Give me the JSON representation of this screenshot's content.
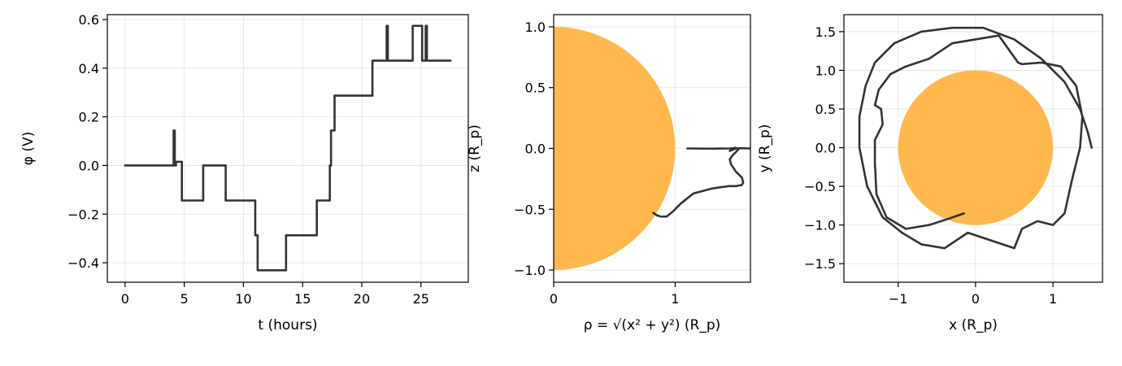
{
  "figure": {
    "background": "#ffffff",
    "trace_color": "#333333",
    "planet_color": "#ffb84d"
  },
  "chart_data": [
    {
      "type": "line",
      "xlabel": "t (hours)",
      "ylabel": "φ (V)",
      "xlim": [
        -1.5,
        29.0
      ],
      "ylim": [
        -0.48,
        0.62
      ],
      "xticks": [
        0,
        5,
        10,
        15,
        20,
        25
      ],
      "yticks": [
        -0.4,
        -0.2,
        0.0,
        0.2,
        0.4,
        0.6
      ],
      "ytick_labels": [
        "−0.4",
        "−0.2",
        "0.0",
        "0.2",
        "0.4",
        "0.6"
      ],
      "grid": true,
      "series": [
        {
          "x": [
            0,
            4.1,
            4.1,
            4.2,
            4.2,
            4.3,
            4.3,
            4.8,
            4.8,
            6.6,
            6.6,
            8.5,
            8.5,
            11.0,
            11.0,
            11.1,
            11.1,
            11.2,
            11.2,
            13.6,
            13.6,
            16.2,
            16.2,
            17.3,
            17.3,
            17.4,
            17.4,
            17.6,
            17.6,
            17.7,
            17.7,
            20.9,
            20.9,
            22.1,
            22.1,
            22.2,
            22.2,
            22.3,
            22.3,
            24.3,
            24.3,
            25.0,
            25.0,
            25.1,
            25.1,
            25.4,
            25.4,
            25.5,
            25.5,
            27.5
          ],
          "y": [
            0,
            0,
            0.144,
            0.144,
            0,
            0,
            0.015,
            0.015,
            -0.144,
            -0.144,
            0,
            0,
            -0.144,
            -0.144,
            -0.287,
            -0.287,
            -0.287,
            -0.287,
            -0.431,
            -0.431,
            -0.287,
            -0.287,
            -0.144,
            -0.144,
            0,
            0,
            0.144,
            0.144,
            0.144,
            0.144,
            0.287,
            0.287,
            0.431,
            0.431,
            0.574,
            0.574,
            0.431,
            0.431,
            0.431,
            0.431,
            0.574,
            0.574,
            0.574,
            0.574,
            0.431,
            0.431,
            0.574,
            0.574,
            0.431,
            0.431
          ]
        }
      ]
    },
    {
      "type": "line",
      "xlabel": "ρ = √(x² + y²) (R_p)",
      "ylabel": "z (R_p)",
      "xlim": [
        0.0,
        1.62
      ],
      "ylim": [
        -1.1,
        1.1
      ],
      "xticks": [
        0,
        1
      ],
      "yticks": [
        -1.0,
        -0.5,
        0.0,
        0.5,
        1.0
      ],
      "ytick_labels": [
        "−1.0",
        "−0.5",
        "0.0",
        "0.5",
        "1.0"
      ],
      "grid": true,
      "planet": {
        "shape": "half-disk",
        "radius": 1.0
      },
      "series": [
        {
          "x": [
            1.1,
            1.3,
            1.45,
            1.5,
            1.52,
            1.5,
            1.47,
            1.45,
            1.46,
            1.5,
            1.55,
            1.56,
            1.55,
            1.5,
            1.44,
            1.3,
            1.15,
            1.05,
            0.98,
            0.93,
            0.88,
            0.85,
            0.82
          ],
          "y": [
            0.0,
            -0.002,
            0.0,
            0.005,
            -0.01,
            -0.03,
            -0.06,
            -0.09,
            -0.13,
            -0.19,
            -0.24,
            -0.28,
            -0.3,
            -0.31,
            -0.31,
            -0.33,
            -0.37,
            -0.45,
            -0.52,
            -0.56,
            -0.56,
            -0.55,
            -0.53
          ]
        },
        {
          "x": [
            1.45,
            1.5,
            1.55,
            1.6,
            1.62
          ],
          "y": [
            -0.02,
            0.0,
            0.002,
            0.0,
            0.0
          ]
        }
      ]
    },
    {
      "type": "line",
      "xlabel": "x (R_p)",
      "ylabel": "y (R_p)",
      "xlim": [
        -1.7,
        1.64
      ],
      "ylim": [
        -1.74,
        1.72
      ],
      "xticks": [
        -1,
        0,
        1
      ],
      "xtick_labels": [
        "−1",
        "0",
        "1"
      ],
      "yticks": [
        -1.5,
        -1.0,
        -0.5,
        0.0,
        0.5,
        1.0,
        1.5
      ],
      "ytick_labels": [
        "−1.5",
        "−1.0",
        "−0.5",
        "0.0",
        "0.5",
        "1.0",
        "1.5"
      ],
      "grid": true,
      "planet": {
        "shape": "disk",
        "radius": 1.0
      },
      "series": [
        {
          "x": [
            -0.15,
            -0.35,
            -0.6,
            -0.9,
            -1.15,
            -1.28,
            -1.3,
            -1.3,
            -1.2,
            -1.22,
            -1.3,
            -1.25,
            -1.1,
            -0.9,
            -0.6,
            -0.3,
            0.0,
            0.3,
            0.55,
            0.6,
            0.85,
            1.1,
            1.3,
            1.38,
            1.35,
            1.25,
            1.15,
            1.0,
            0.8,
            0.6,
            0.5,
            0.2,
            -0.1,
            -0.4,
            -0.7,
            -0.95,
            -1.2,
            -1.4,
            -1.5,
            -1.5,
            -1.42,
            -1.3,
            -1.05,
            -0.7,
            -0.3,
            0.1,
            0.5,
            0.85,
            1.15,
            1.35,
            1.45,
            1.5
          ],
          "y": [
            -0.85,
            -0.92,
            -1.0,
            -1.05,
            -0.9,
            -0.6,
            -0.2,
            0.1,
            0.3,
            0.5,
            0.55,
            0.75,
            0.95,
            1.05,
            1.15,
            1.35,
            1.4,
            1.45,
            1.1,
            1.08,
            1.1,
            1.05,
            0.8,
            0.4,
            0.0,
            -0.4,
            -0.85,
            -1.0,
            -0.95,
            -1.05,
            -1.3,
            -1.2,
            -1.1,
            -1.3,
            -1.25,
            -1.1,
            -0.9,
            -0.5,
            0.0,
            0.4,
            0.8,
            1.1,
            1.35,
            1.5,
            1.55,
            1.55,
            1.4,
            1.15,
            0.85,
            0.5,
            0.2,
            0.0
          ]
        }
      ]
    }
  ]
}
